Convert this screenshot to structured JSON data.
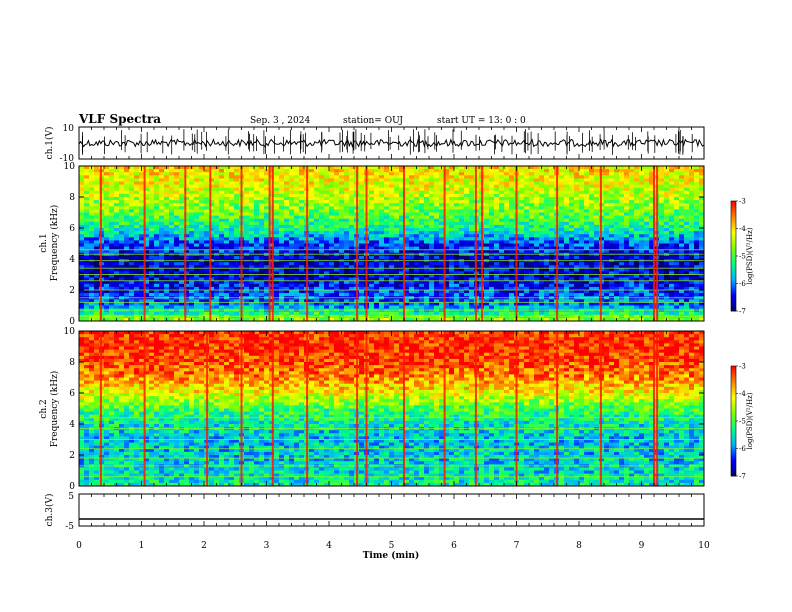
{
  "header": {
    "title": "VLF Spectra",
    "date": "Sep. 3 , 2024",
    "station": "station= OUJ",
    "start": "start UT =  13: 0 : 0"
  },
  "colors": {
    "colormap": [
      "#000070",
      "#0000ff",
      "#00b4ff",
      "#00ff80",
      "#80ff00",
      "#ffff00",
      "#ff8000",
      "#ff0000",
      "#ffffff"
    ],
    "trace": "#000000"
  },
  "chart_data": [
    {
      "id": "ch1-waveform",
      "type": "line",
      "ylabel": "ch.1(V)",
      "yticklabels": [
        "10",
        "-10"
      ],
      "ylim": [
        -10,
        10
      ],
      "xlim": [
        0,
        10
      ],
      "description_level": "noisy waveform near 0 V with spikes"
    },
    {
      "id": "ch1-spectrogram",
      "type": "heatmap",
      "ylabel": "ch.1\nFrequency (kHz)",
      "ylabel_lines": [
        "ch.1",
        "Frequency (kHz)"
      ],
      "yticks": [
        0,
        2,
        4,
        6,
        8,
        10
      ],
      "ylim": [
        0,
        10
      ],
      "xlim": [
        0,
        10
      ],
      "colorbar": {
        "label": "log(PSD)(V²/Hz)",
        "ticks": [
          -3,
          -4,
          -5,
          -6,
          -7
        ],
        "range": [
          -7,
          -3
        ]
      },
      "level_profile": [
        {
          "freq_khz": 0.0,
          "level": -4.5
        },
        {
          "freq_khz": 1.0,
          "level": -6.0
        },
        {
          "freq_khz": 2.0,
          "level": -6.3
        },
        {
          "freq_khz": 3.0,
          "level": -6.6
        },
        {
          "freq_khz": 4.0,
          "level": -6.6
        },
        {
          "freq_khz": 5.0,
          "level": -6.2
        },
        {
          "freq_khz": 6.0,
          "level": -5.3
        },
        {
          "freq_khz": 7.0,
          "level": -4.9
        },
        {
          "freq_khz": 8.0,
          "level": -4.5
        },
        {
          "freq_khz": 9.0,
          "level": -4.2
        },
        {
          "freq_khz": 10.0,
          "level": -4.0
        }
      ],
      "line_frequencies_khz": [
        0.3,
        0.7,
        1.2,
        1.5,
        2.0,
        2.6,
        3.0,
        3.4,
        3.9,
        4.3,
        4.6
      ],
      "impulse_times_min": [
        0.35,
        1.05,
        1.7,
        2.1,
        2.6,
        3.05,
        3.1,
        3.65,
        4.45,
        4.6,
        5.2,
        5.85,
        6.35,
        6.45,
        7.0,
        7.65,
        8.35,
        9.2,
        9.25
      ]
    },
    {
      "id": "ch2-spectrogram",
      "type": "heatmap",
      "ylabel": "ch.2\nFrequency (kHz)",
      "ylabel_lines": [
        "ch.2",
        "Frequency (kHz)"
      ],
      "yticks": [
        0,
        2,
        4,
        6,
        8,
        10
      ],
      "ylim": [
        0,
        10
      ],
      "xlim": [
        0,
        10
      ],
      "colorbar": {
        "label": "log(PSD)(V²/Hz)",
        "ticks": [
          -3,
          -4,
          -5,
          -6,
          -7
        ],
        "range": [
          -7,
          -3
        ]
      },
      "level_profile": [
        {
          "freq_khz": 0.0,
          "level": -5.4
        },
        {
          "freq_khz": 1.0,
          "level": -5.6
        },
        {
          "freq_khz": 2.0,
          "level": -5.7
        },
        {
          "freq_khz": 3.0,
          "level": -5.7
        },
        {
          "freq_khz": 4.0,
          "level": -5.5
        },
        {
          "freq_khz": 5.0,
          "level": -5.0
        },
        {
          "freq_khz": 6.0,
          "level": -4.2
        },
        {
          "freq_khz": 7.0,
          "level": -3.6
        },
        {
          "freq_khz": 8.0,
          "level": -3.3
        },
        {
          "freq_khz": 9.0,
          "level": -3.2
        },
        {
          "freq_khz": 10.0,
          "level": -3.2
        }
      ],
      "line_frequencies_khz": [
        0.6,
        1.3,
        1.8,
        2.4,
        3.0,
        3.7,
        4.4
      ],
      "impulse_times_min": [
        0.35,
        1.05,
        2.05,
        2.6,
        3.1,
        3.65,
        4.45,
        4.6,
        5.2,
        5.85,
        6.35,
        7.0,
        7.65,
        8.35,
        9.2,
        9.25
      ]
    },
    {
      "id": "ch3-waveform",
      "type": "line",
      "ylabel": "ch.3(V)",
      "yticklabels": [
        "5",
        "-5"
      ],
      "ylim": [
        -5,
        5
      ],
      "xlim": [
        0,
        10
      ],
      "constant_value": -2.8
    }
  ],
  "xaxis": {
    "label": "Time (min)",
    "ticks": [
      "0",
      "1",
      "2",
      "3",
      "4",
      "5",
      "6",
      "7",
      "8",
      "9",
      "10"
    ]
  }
}
